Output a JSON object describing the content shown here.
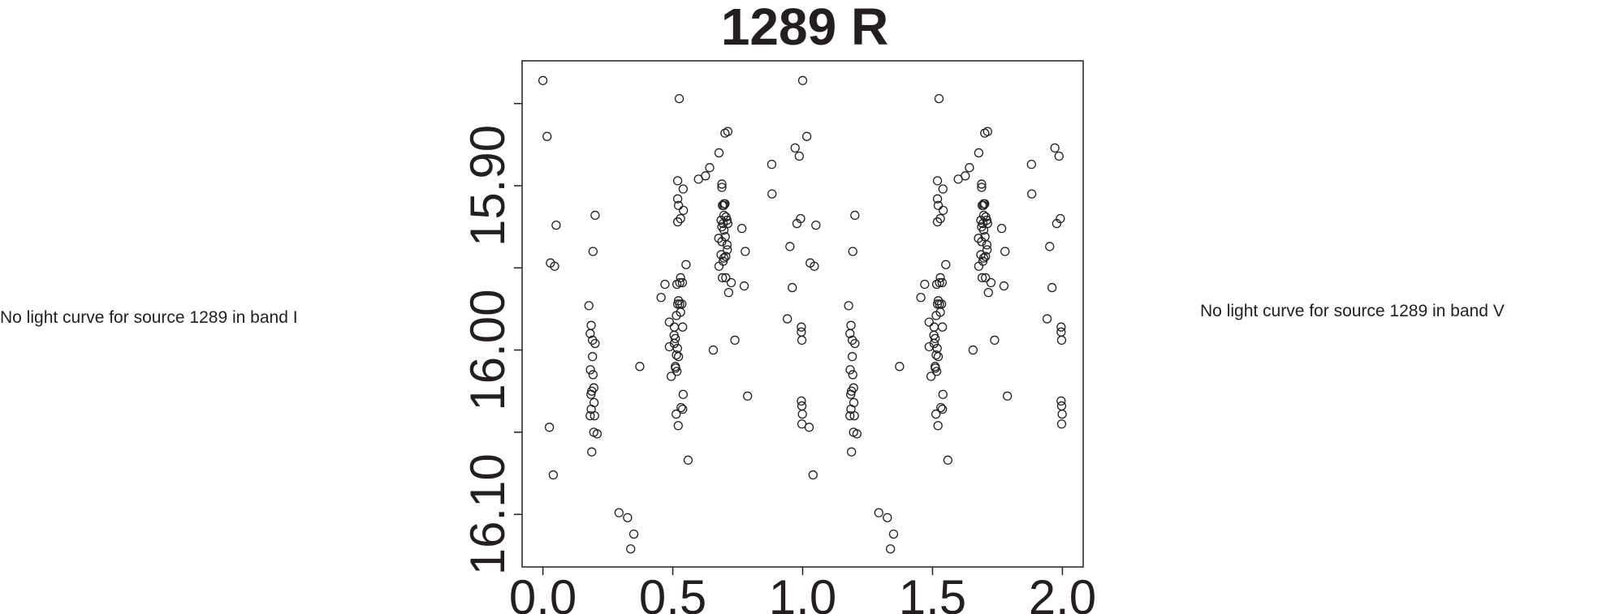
{
  "messages": {
    "left": "No light curve for source 1289 in band I",
    "right": "No light curve for source 1289 in band V"
  },
  "chart_data": {
    "type": "scatter",
    "title": "1289 R",
    "xlabel": "",
    "ylabel": "",
    "xlim": [
      -0.08,
      2.08
    ],
    "ylim": [
      16.132,
      15.824
    ],
    "y_inverted": true,
    "x_ticks": [
      0.0,
      0.5,
      1.0,
      1.5,
      2.0
    ],
    "x_tick_labels": [
      "0.0",
      "0.5",
      "1.0",
      "1.5",
      "2.0"
    ],
    "y_ticks": [
      15.85,
      15.9,
      15.95,
      16.0,
      16.05,
      16.1
    ],
    "y_tick_labels": [
      "",
      "15.90",
      "",
      "16.00",
      "",
      "16.10"
    ],
    "grid": false,
    "marker": "open-circle",
    "marker_color": "#231f20",
    "phase_cycles_shown": 2,
    "points": [
      [
        0.0,
        15.836
      ],
      [
        0.016,
        15.87
      ],
      [
        0.051,
        15.924
      ],
      [
        0.029,
        15.947
      ],
      [
        0.045,
        15.949
      ],
      [
        0.025,
        16.047
      ],
      [
        0.04,
        16.076
      ],
      [
        0.177,
        15.973
      ],
      [
        0.186,
        15.985
      ],
      [
        0.182,
        15.99
      ],
      [
        0.191,
        15.994
      ],
      [
        0.201,
        15.996
      ],
      [
        0.191,
        16.004
      ],
      [
        0.183,
        16.012
      ],
      [
        0.193,
        16.015
      ],
      [
        0.196,
        16.023
      ],
      [
        0.188,
        16.025
      ],
      [
        0.185,
        16.027
      ],
      [
        0.197,
        16.032
      ],
      [
        0.186,
        16.036
      ],
      [
        0.182,
        16.04
      ],
      [
        0.199,
        16.04
      ],
      [
        0.196,
        16.05
      ],
      [
        0.209,
        16.051
      ],
      [
        0.188,
        16.062
      ],
      [
        0.201,
        15.918
      ],
      [
        0.193,
        15.94
      ],
      [
        0.293,
        16.099
      ],
      [
        0.326,
        16.102
      ],
      [
        0.35,
        16.112
      ],
      [
        0.338,
        16.121
      ],
      [
        0.373,
        16.01
      ],
      [
        0.455,
        15.968
      ],
      [
        0.47,
        15.96
      ],
      [
        0.487,
        15.983
      ],
      [
        0.487,
        15.998
      ],
      [
        0.494,
        16.016
      ],
      [
        0.505,
        15.991
      ],
      [
        0.51,
        15.993
      ],
      [
        0.506,
        15.986
      ],
      [
        0.514,
        15.979
      ],
      [
        0.519,
        15.972
      ],
      [
        0.522,
        15.97
      ],
      [
        0.527,
        15.972
      ],
      [
        0.535,
        15.972
      ],
      [
        0.53,
        15.977
      ],
      [
        0.538,
        15.986
      ],
      [
        0.527,
        15.959
      ],
      [
        0.516,
        15.96
      ],
      [
        0.537,
        15.959
      ],
      [
        0.53,
        15.956
      ],
      [
        0.506,
        15.996
      ],
      [
        0.518,
        15.999
      ],
      [
        0.514,
        16.003
      ],
      [
        0.522,
        16.004
      ],
      [
        0.51,
        16.01
      ],
      [
        0.511,
        16.011
      ],
      [
        0.516,
        16.013
      ],
      [
        0.54,
        16.027
      ],
      [
        0.532,
        16.035
      ],
      [
        0.538,
        16.036
      ],
      [
        0.513,
        16.039
      ],
      [
        0.521,
        16.046
      ],
      [
        0.559,
        16.067
      ],
      [
        0.551,
        15.948
      ],
      [
        0.519,
        15.897
      ],
      [
        0.54,
        15.902
      ],
      [
        0.519,
        15.908
      ],
      [
        0.522,
        15.912
      ],
      [
        0.541,
        15.915
      ],
      [
        0.53,
        15.92
      ],
      [
        0.519,
        15.922
      ],
      [
        0.525,
        15.847
      ],
      [
        0.599,
        15.896
      ],
      [
        0.626,
        15.894
      ],
      [
        0.642,
        15.889
      ],
      [
        0.656,
        16.0
      ],
      [
        0.678,
        15.88
      ],
      [
        0.689,
        15.899
      ],
      [
        0.689,
        15.901
      ],
      [
        0.697,
        15.911
      ],
      [
        0.696,
        15.912
      ],
      [
        0.701,
        15.911
      ],
      [
        0.691,
        15.912
      ],
      [
        0.697,
        15.918
      ],
      [
        0.705,
        15.919
      ],
      [
        0.686,
        15.921
      ],
      [
        0.709,
        15.921
      ],
      [
        0.694,
        15.923
      ],
      [
        0.712,
        15.923
      ],
      [
        0.689,
        15.925
      ],
      [
        0.697,
        15.927
      ],
      [
        0.677,
        15.932
      ],
      [
        0.689,
        15.934
      ],
      [
        0.702,
        15.931
      ],
      [
        0.709,
        15.936
      ],
      [
        0.71,
        15.939
      ],
      [
        0.686,
        15.942
      ],
      [
        0.697,
        15.944
      ],
      [
        0.704,
        15.943
      ],
      [
        0.694,
        15.946
      ],
      [
        0.678,
        15.949
      ],
      [
        0.691,
        15.956
      ],
      [
        0.704,
        15.956
      ],
      [
        0.725,
        15.959
      ],
      [
        0.715,
        15.965
      ],
      [
        0.701,
        15.868
      ],
      [
        0.712,
        15.867
      ],
      [
        0.766,
        15.926
      ],
      [
        0.779,
        15.94
      ],
      [
        0.775,
        15.961
      ],
      [
        0.739,
        15.994
      ],
      [
        0.788,
        16.028
      ],
      [
        0.881,
        15.887
      ],
      [
        0.882,
        15.905
      ],
      [
        0.941,
        15.981
      ],
      [
        0.951,
        15.937
      ],
      [
        0.96,
        15.962
      ],
      [
        0.971,
        15.877
      ],
      [
        0.987,
        15.882
      ],
      [
        0.992,
        15.92
      ],
      [
        0.978,
        15.923
      ],
      [
        0.995,
        15.986
      ],
      [
        0.995,
        15.989
      ],
      [
        0.997,
        15.994
      ],
      [
        0.995,
        16.031
      ],
      [
        0.997,
        16.034
      ],
      [
        0.999,
        16.039
      ],
      [
        0.997,
        16.045
      ]
    ]
  }
}
